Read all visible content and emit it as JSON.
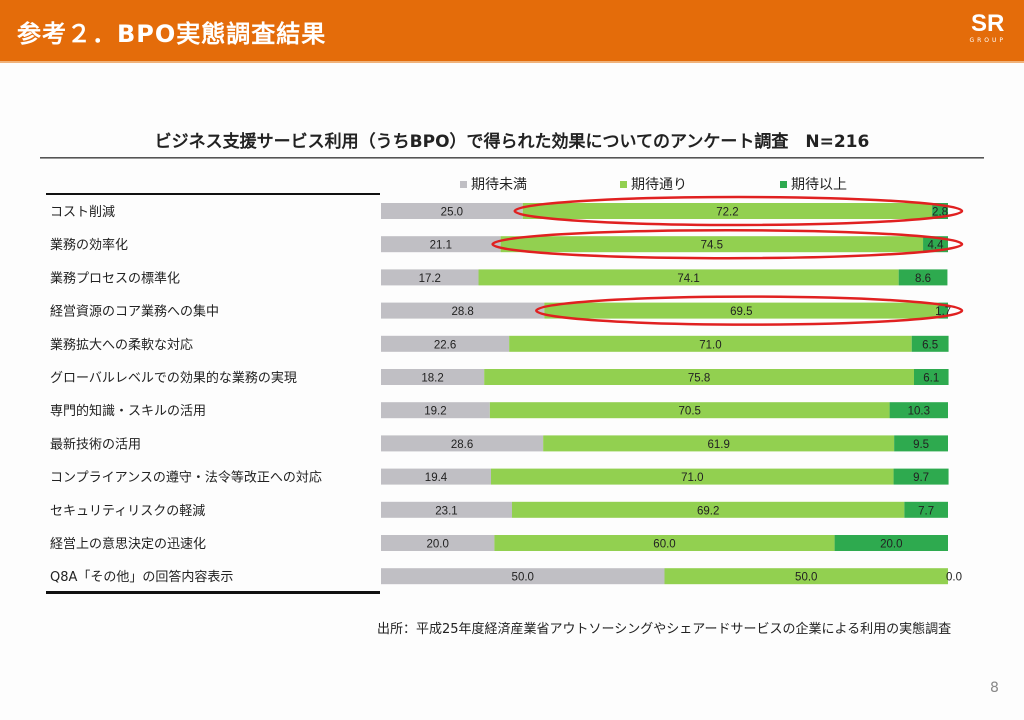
{
  "header": {
    "title": "参考２．BPO実態調査結果",
    "logo_main": "SR",
    "logo_sub": "GROUP",
    "color": "#e46c0a"
  },
  "chart_data": {
    "type": "bar",
    "orientation": "horizontal",
    "stacked": true,
    "title": "ビジネス支援サービス利用（うちBPO）で得られた効果についてのアンケート調査　N=216",
    "xlabel": "",
    "ylabel": "",
    "xlim": [
      0,
      100
    ],
    "grid": false,
    "legend_position": "top",
    "categories": [
      "コスト削減",
      "業務の効率化",
      "業務プロセスの標準化",
      "経営資源のコア業務への集中",
      "業務拡大への柔軟な対応",
      "グローバルレベルでの効果的な業務の実現",
      "専門的知識・スキルの活用",
      "最新技術の活用",
      "コンプライアンスの遵守・法令等改正への対応",
      "セキュリティリスクの軽減",
      "経営上の意思決定の迅速化",
      "Q8A「その他」の回答内容表示"
    ],
    "series": [
      {
        "name": "期待未満",
        "color": "#c0bfc4",
        "values": [
          25.0,
          21.1,
          17.2,
          28.8,
          22.6,
          18.2,
          19.2,
          28.6,
          19.4,
          23.1,
          20.0,
          50.0
        ]
      },
      {
        "name": "期待通り",
        "color": "#92d050",
        "values": [
          72.2,
          74.5,
          74.1,
          69.5,
          71.0,
          75.8,
          70.5,
          61.9,
          71.0,
          69.2,
          60.0,
          50.0
        ]
      },
      {
        "name": "期待以上",
        "color": "#2eaa4f",
        "values": [
          2.8,
          4.4,
          8.6,
          1.7,
          6.5,
          6.1,
          10.3,
          9.5,
          9.7,
          7.7,
          20.0,
          0.0
        ]
      }
    ],
    "highlighted_rows": [
      0,
      1,
      3
    ],
    "highlight_color": "#e02020"
  },
  "source": "出所：平成25年度経済産業省アウトソーシングやシェアードサービスの企業による利用の実態調査",
  "page_number": "8"
}
